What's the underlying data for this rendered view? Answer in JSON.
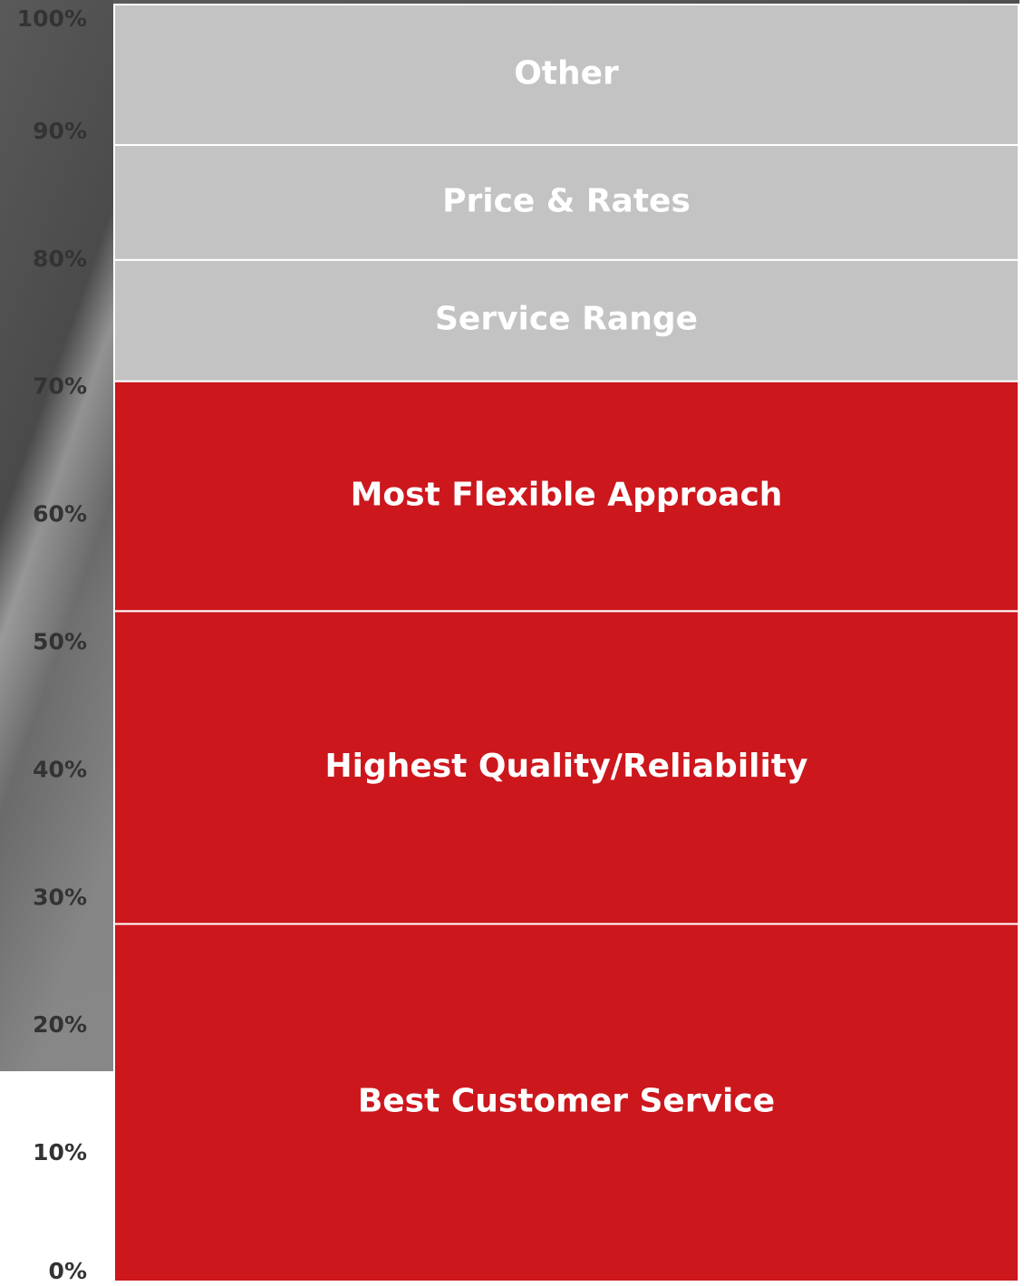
{
  "chart_data": {
    "type": "stacked_bar",
    "series": [
      {
        "name": "Best Customer Service",
        "color": "#cc171d",
        "values": [
          28
        ]
      },
      {
        "name": "Highest Quality/Reliability",
        "color": "#cc171d",
        "values": [
          24.5
        ]
      },
      {
        "name": "Most Flexible Approach",
        "color": "#cc171d",
        "values": [
          18
        ]
      },
      {
        "name": "Service Range",
        "color": "#c3c3c3",
        "values": [
          9.5
        ]
      },
      {
        "name": "Price & Rates",
        "color": "#c3c3c3",
        "values": [
          9
        ]
      },
      {
        "name": "Other",
        "color": "#c3c3c3",
        "values": [
          11
        ]
      }
    ],
    "ylim": [
      0,
      100
    ],
    "yticks": [
      {
        "value": 0,
        "label": "0%"
      },
      {
        "value": 10,
        "label": "10%"
      },
      {
        "value": 20,
        "label": "20%"
      },
      {
        "value": 30,
        "label": "30%"
      },
      {
        "value": 40,
        "label": "40%"
      },
      {
        "value": 50,
        "label": "50%"
      },
      {
        "value": 60,
        "label": "60%"
      },
      {
        "value": 70,
        "label": "70%"
      },
      {
        "value": 80,
        "label": "80%"
      },
      {
        "value": 90,
        "label": "90%"
      },
      {
        "value": 100,
        "label": "100%"
      }
    ]
  }
}
